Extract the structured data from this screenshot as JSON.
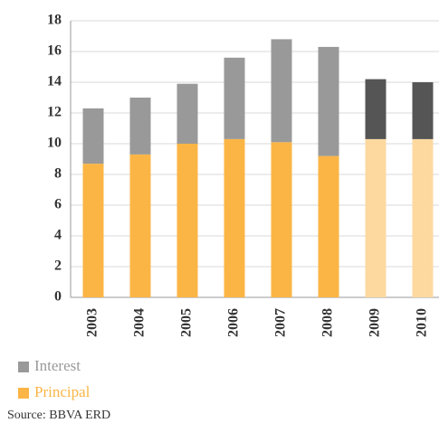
{
  "chart_data": {
    "type": "stacked_bar",
    "categories": [
      "2003",
      "2004",
      "2005",
      "2006",
      "2007",
      "2008",
      "2009",
      "2010"
    ],
    "series": [
      {
        "name": "Principal",
        "color": "#fbb545",
        "point_colors": [
          "#fbb545",
          "#fbb545",
          "#fbb545",
          "#fbb545",
          "#fbb545",
          "#fbb545",
          "#fdd9a0",
          "#fdd9a0"
        ],
        "values": [
          8.7,
          9.3,
          10.0,
          10.3,
          10.1,
          9.2,
          10.3,
          10.3
        ]
      },
      {
        "name": "Interest",
        "color": "#999999",
        "point_colors": [
          "#999999",
          "#999999",
          "#999999",
          "#999999",
          "#999999",
          "#999999",
          "#555555",
          "#555555"
        ],
        "values": [
          3.6,
          3.7,
          3.9,
          5.3,
          6.7,
          7.1,
          3.9,
          3.7
        ]
      }
    ],
    "ylim": [
      0,
      18
    ],
    "yticks": [
      0,
      2,
      4,
      6,
      8,
      10,
      12,
      14,
      16,
      18
    ],
    "grid": true,
    "legend_order": [
      1,
      0
    ],
    "source": "Source: BBVA ERD"
  }
}
